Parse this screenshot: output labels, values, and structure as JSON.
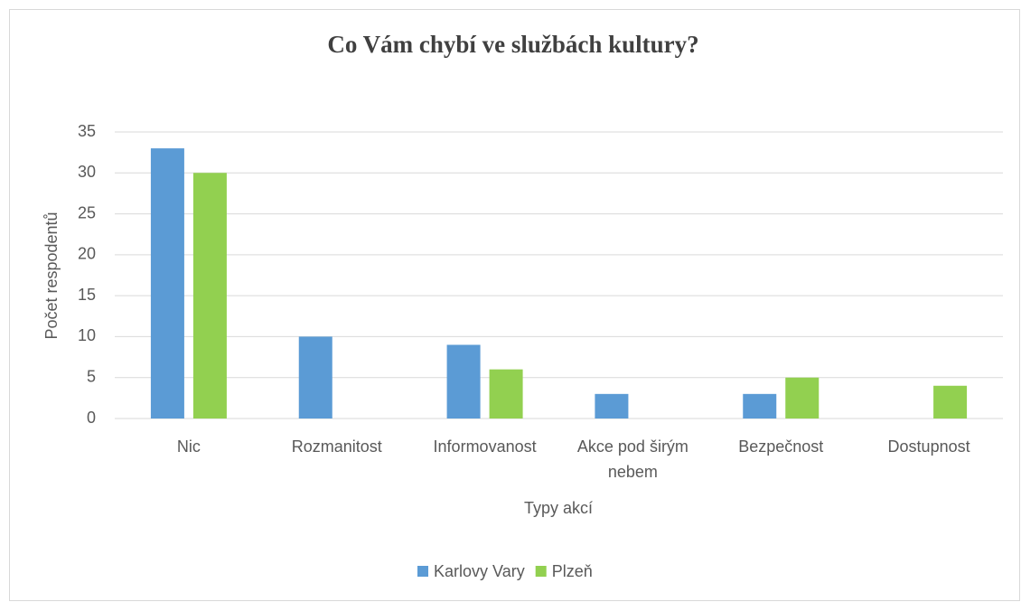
{
  "chart_data": {
    "type": "bar",
    "title": "Co Vám chybí ve službách kultury?",
    "x_label": "Typy akcí",
    "y_label": "Počet respodentů",
    "categories": [
      "Nic",
      "Rozmanitost",
      "Informovanost",
      "Akce pod širým nebem",
      "Bezpečnost",
      "Dostupnost"
    ],
    "series": [
      {
        "name": "Karlovy Vary",
        "color": "#5b9bd5",
        "values": [
          33,
          10,
          9,
          3,
          3,
          0
        ]
      },
      {
        "name": "Plzeň",
        "color": "#92d050",
        "values": [
          30,
          0,
          6,
          0,
          5,
          4
        ]
      }
    ],
    "ylim": [
      0,
      35
    ],
    "yticks": [
      0,
      5,
      10,
      15,
      20,
      25,
      30,
      35
    ],
    "grid": true,
    "legend": "bottom"
  }
}
